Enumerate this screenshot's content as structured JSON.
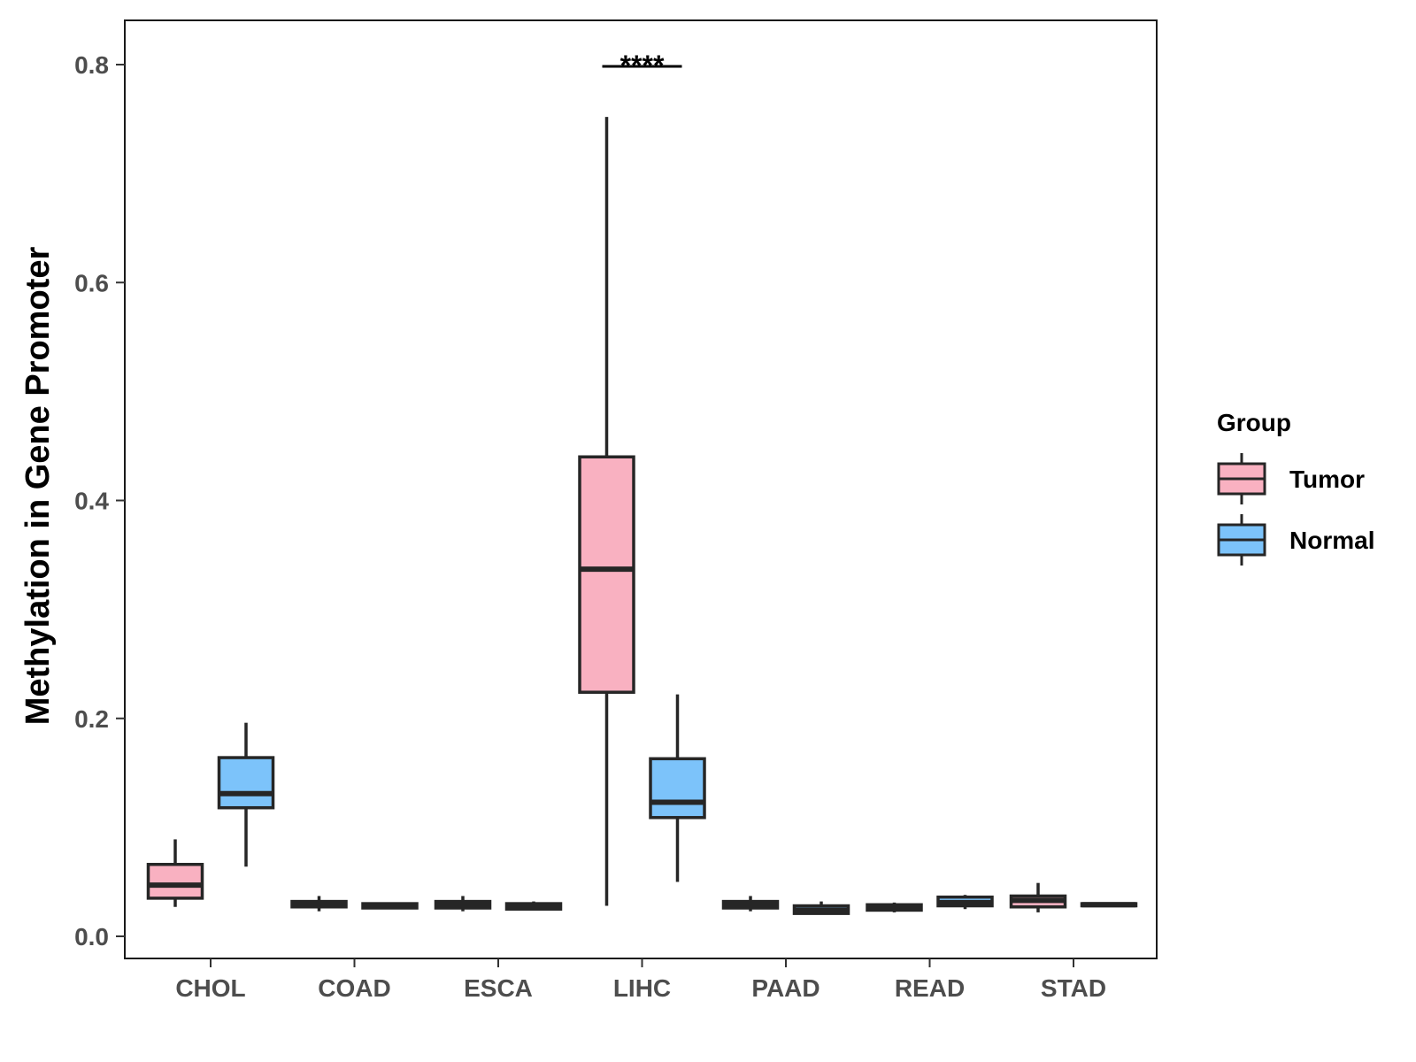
{
  "chart_data": {
    "type": "boxplot",
    "title": "",
    "xlabel": "",
    "ylabel": "Methylation in Gene Promoter",
    "ylim": [
      -0.035,
      0.835
    ],
    "yticks": [
      "0.0",
      "0.2",
      "0.4",
      "0.6",
      "0.8"
    ],
    "ytick_values": [
      0.0,
      0.2,
      0.4,
      0.6,
      0.8
    ],
    "categories": [
      "CHOL",
      "COAD",
      "ESCA",
      "LIHC",
      "PAAD",
      "READ",
      "STAD"
    ],
    "legend": {
      "title": "Group",
      "position": "right",
      "entries": [
        {
          "name": "Tumor",
          "color": "#f9b1c1"
        },
        {
          "name": "Normal",
          "color": "#7cc3fa"
        }
      ]
    },
    "series": [
      {
        "name": "Tumor",
        "color": "#f9b1c1",
        "boxes": [
          {
            "category": "CHOL",
            "whisker_low": 0.027,
            "q1": 0.035,
            "median": 0.047,
            "q3": 0.066,
            "whisker_high": 0.089
          },
          {
            "category": "COAD",
            "whisker_low": 0.023,
            "q1": 0.027,
            "median": 0.03,
            "q3": 0.032,
            "whisker_high": 0.037
          },
          {
            "category": "ESCA",
            "whisker_low": 0.023,
            "q1": 0.026,
            "median": 0.029,
            "q3": 0.032,
            "whisker_high": 0.037
          },
          {
            "category": "LIHC",
            "whisker_low": 0.028,
            "q1": 0.224,
            "median": 0.337,
            "q3": 0.44,
            "whisker_high": 0.752
          },
          {
            "category": "PAAD",
            "whisker_low": 0.023,
            "q1": 0.026,
            "median": 0.029,
            "q3": 0.032,
            "whisker_high": 0.037
          },
          {
            "category": "READ",
            "whisker_low": 0.022,
            "q1": 0.024,
            "median": 0.026,
            "q3": 0.029,
            "whisker_high": 0.031
          },
          {
            "category": "STAD",
            "whisker_low": 0.022,
            "q1": 0.027,
            "median": 0.033,
            "q3": 0.037,
            "whisker_high": 0.049
          }
        ]
      },
      {
        "name": "Normal",
        "color": "#7cc3fa",
        "boxes": [
          {
            "category": "CHOL",
            "whisker_low": 0.064,
            "q1": 0.118,
            "median": 0.131,
            "q3": 0.164,
            "whisker_high": 0.196
          },
          {
            "category": "COAD",
            "whisker_low": 0.026,
            "q1": 0.026,
            "median": 0.028,
            "q3": 0.03,
            "whisker_high": 0.031
          },
          {
            "category": "ESCA",
            "whisker_low": 0.025,
            "q1": 0.025,
            "median": 0.027,
            "q3": 0.03,
            "whisker_high": 0.032
          },
          {
            "category": "LIHC",
            "whisker_low": 0.05,
            "q1": 0.109,
            "median": 0.123,
            "q3": 0.163,
            "whisker_high": 0.222
          },
          {
            "category": "PAAD",
            "whisker_low": 0.021,
            "q1": 0.021,
            "median": 0.024,
            "q3": 0.028,
            "whisker_high": 0.032
          },
          {
            "category": "READ",
            "whisker_low": 0.025,
            "q1": 0.028,
            "median": 0.031,
            "q3": 0.036,
            "whisker_high": 0.038
          },
          {
            "category": "STAD",
            "whisker_low": 0.027,
            "q1": 0.028,
            "median": 0.029,
            "q3": 0.03,
            "whisker_high": 0.031
          }
        ]
      }
    ],
    "annotations": [
      {
        "category": "LIHC",
        "text": "****",
        "y": 0.8
      }
    ]
  }
}
